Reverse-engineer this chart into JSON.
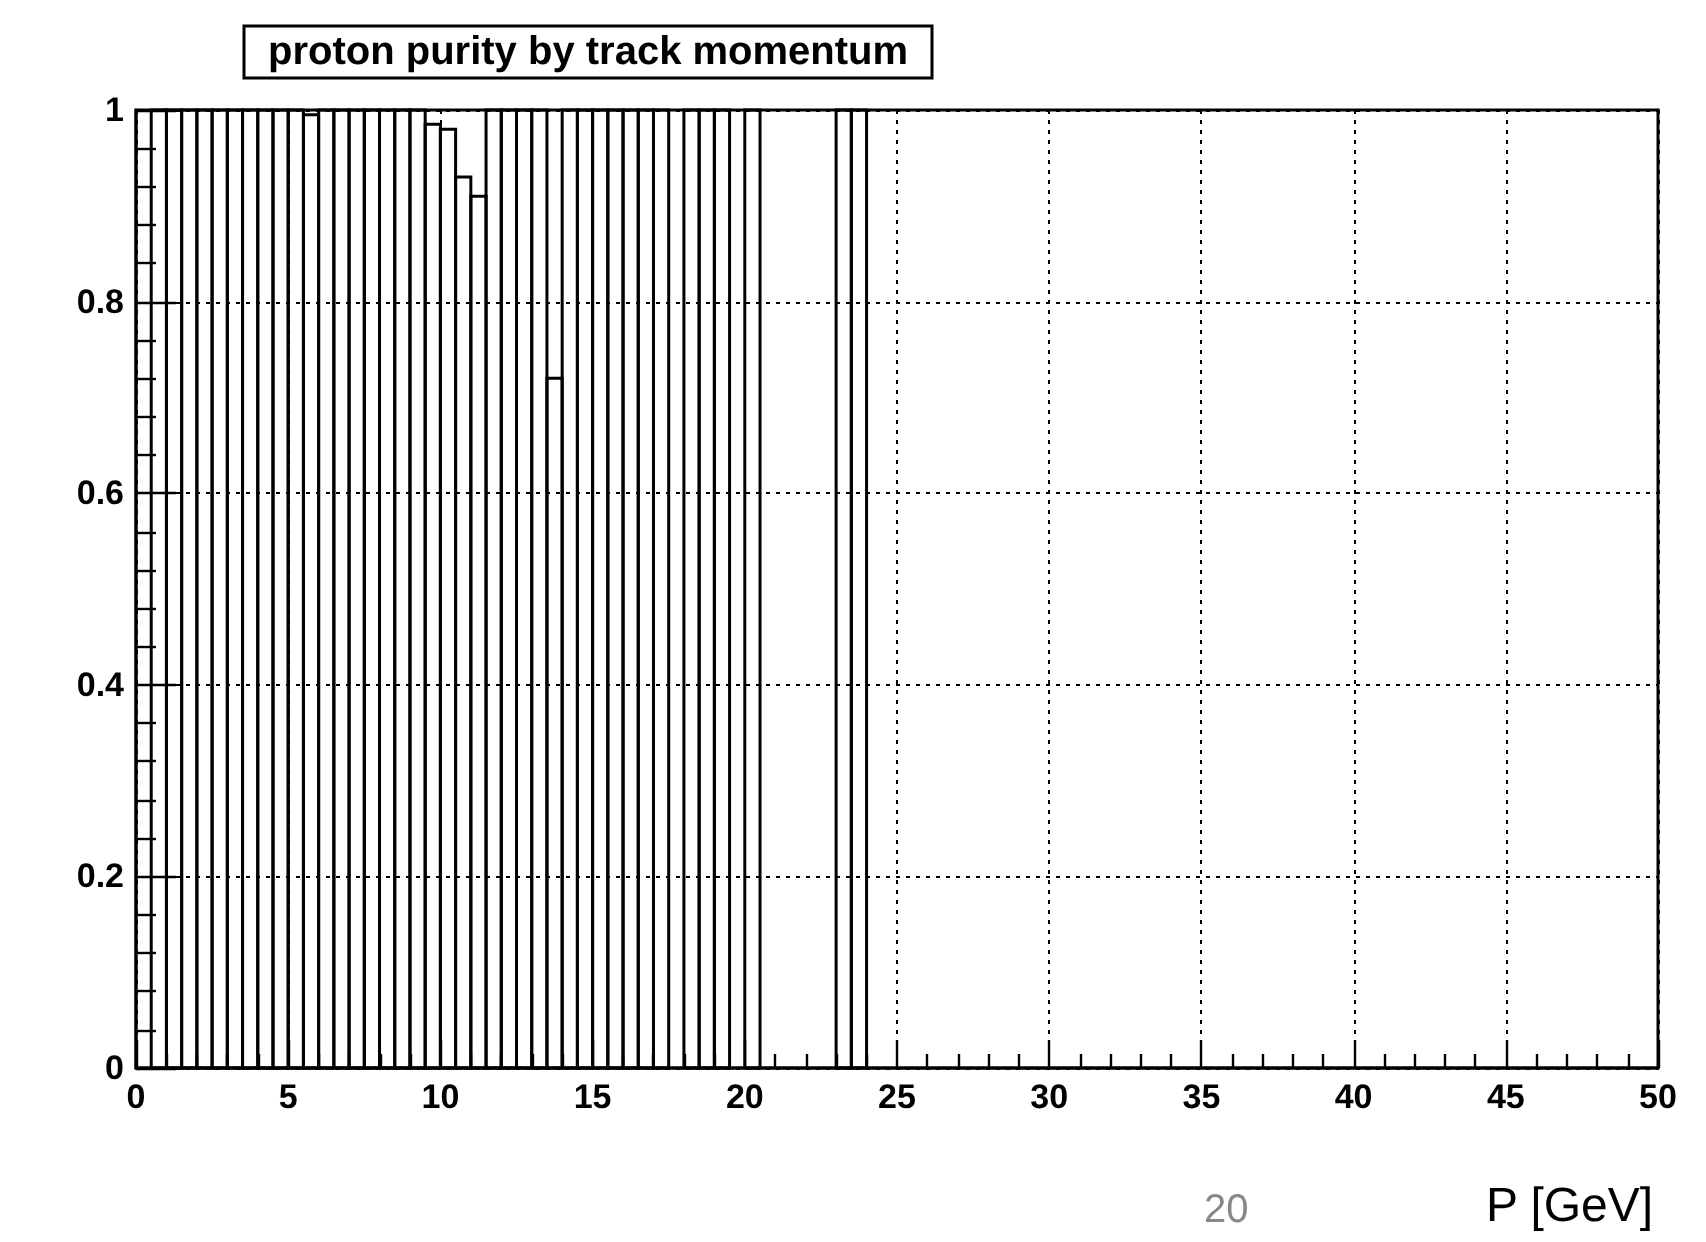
{
  "chart_data": {
    "type": "histogram",
    "title": "proton purity by track momentum",
    "xlabel": "P [GeV]",
    "annotations": [
      "20"
    ],
    "bins": [
      0,
      0.5,
      1,
      1.5,
      2,
      2.5,
      3,
      3.5,
      4,
      4.5,
      5,
      5.5,
      6,
      6.5,
      7,
      7.5,
      8,
      8.5,
      9,
      9.5,
      10,
      10.5,
      11,
      11.5,
      12,
      12.5,
      13,
      13.5,
      14,
      14.5,
      15,
      15.5,
      16,
      16.5,
      17,
      17.5,
      18,
      18.5,
      19,
      19.5,
      20,
      20.5,
      21,
      21.5,
      22,
      22.5,
      23,
      23.5,
      24,
      24.5,
      25,
      25.5,
      26,
      26.5,
      27,
      27.5,
      28,
      28.5,
      29,
      29.5,
      30,
      30.5,
      31,
      31.5,
      32,
      32.5,
      33,
      33.5,
      34,
      34.5,
      35,
      35.5,
      36,
      36.5,
      37,
      37.5,
      38,
      38.5,
      39,
      39.5,
      40,
      40.5,
      41,
      41.5,
      42,
      42.5,
      43,
      43.5,
      44,
      44.5,
      45,
      45.5,
      46,
      46.5,
      47,
      47.5,
      48,
      48.5,
      49,
      49.5,
      50
    ],
    "values": [
      0,
      1,
      1,
      1,
      1,
      1,
      1,
      1,
      1,
      1,
      1,
      0.995,
      1,
      1,
      1,
      1,
      1,
      1,
      1,
      0.985,
      0.98,
      0.93,
      0.91,
      1,
      1,
      1,
      1,
      0.72,
      1,
      1,
      1,
      1,
      1,
      1,
      1,
      0,
      1,
      1,
      1,
      0,
      1,
      0,
      0,
      0,
      0,
      0,
      1,
      1,
      0,
      0,
      0,
      0,
      0,
      0,
      0,
      0,
      0,
      0,
      0,
      0,
      0,
      0,
      0,
      0,
      0,
      0,
      0,
      0,
      0,
      0,
      0,
      0,
      0,
      0,
      0,
      0,
      0,
      0,
      0,
      0,
      0,
      0,
      0,
      0,
      0,
      0,
      0,
      0,
      0,
      0,
      0,
      0,
      0,
      0,
      0,
      0,
      0,
      0,
      0,
      0
    ],
    "color": "#000000",
    "xlim": [
      0,
      50
    ],
    "xticks": [
      0,
      5,
      10,
      15,
      20,
      25,
      30,
      35,
      40,
      45,
      50
    ],
    "ylim": [
      0,
      1
    ],
    "yticks": [
      0,
      0.2,
      0.4,
      0.6,
      0.8,
      1
    ],
    "grid": true
  }
}
